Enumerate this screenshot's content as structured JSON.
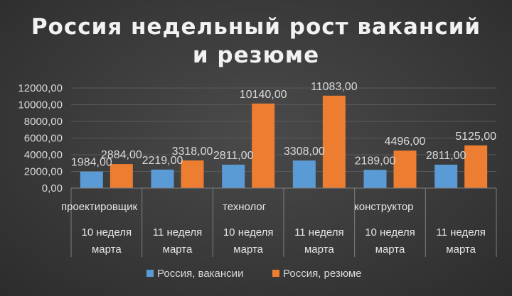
{
  "chart_data": {
    "type": "bar",
    "title_lines": [
      "Россия недельный рост вакансий",
      "и резюме"
    ],
    "groups": [
      {
        "label": "проектировщик",
        "span": 2
      },
      {
        "label": "технолог",
        "span": 2
      },
      {
        "label": "конструктор",
        "span": 2
      }
    ],
    "categories": [
      "10 неделя марта",
      "11 неделя марта",
      "10 неделя марта",
      "11 неделя марта",
      "10 неделя марта",
      "11 неделя марта"
    ],
    "category_lines": [
      [
        "10 неделя",
        "марта"
      ],
      [
        "11 неделя",
        "марта"
      ],
      [
        "10 неделя",
        "марта"
      ],
      [
        "11 неделя",
        "марта"
      ],
      [
        "10 неделя",
        "марта"
      ],
      [
        "11 неделя",
        "марта"
      ]
    ],
    "series": [
      {
        "name": "Россия, вакансии",
        "color": "#5b9bd5",
        "values": [
          1984,
          2219,
          2811,
          3308,
          2189,
          2811
        ]
      },
      {
        "name": "Россия, резюме",
        "color": "#ed7d31",
        "values": [
          2884,
          3318,
          10140,
          11083,
          4496,
          5125
        ]
      }
    ],
    "ylim": [
      0,
      12000
    ],
    "yticks": [
      0,
      2000,
      4000,
      6000,
      8000,
      10000,
      12000
    ],
    "tick_labels": [
      "0,00",
      "2000,00",
      "4000,00",
      "6000,00",
      "8000,00",
      "10000,00",
      "12000,00"
    ],
    "data_labels": [
      [
        "1984,00",
        "2219,00",
        "2811,00",
        "3308,00",
        "2189,00",
        "2811,00"
      ],
      [
        "2884,00",
        "3318,00",
        "10140,00",
        "11083,00",
        "4496,00",
        "5125,00"
      ]
    ],
    "legend_position": "bottom",
    "grid": true
  }
}
